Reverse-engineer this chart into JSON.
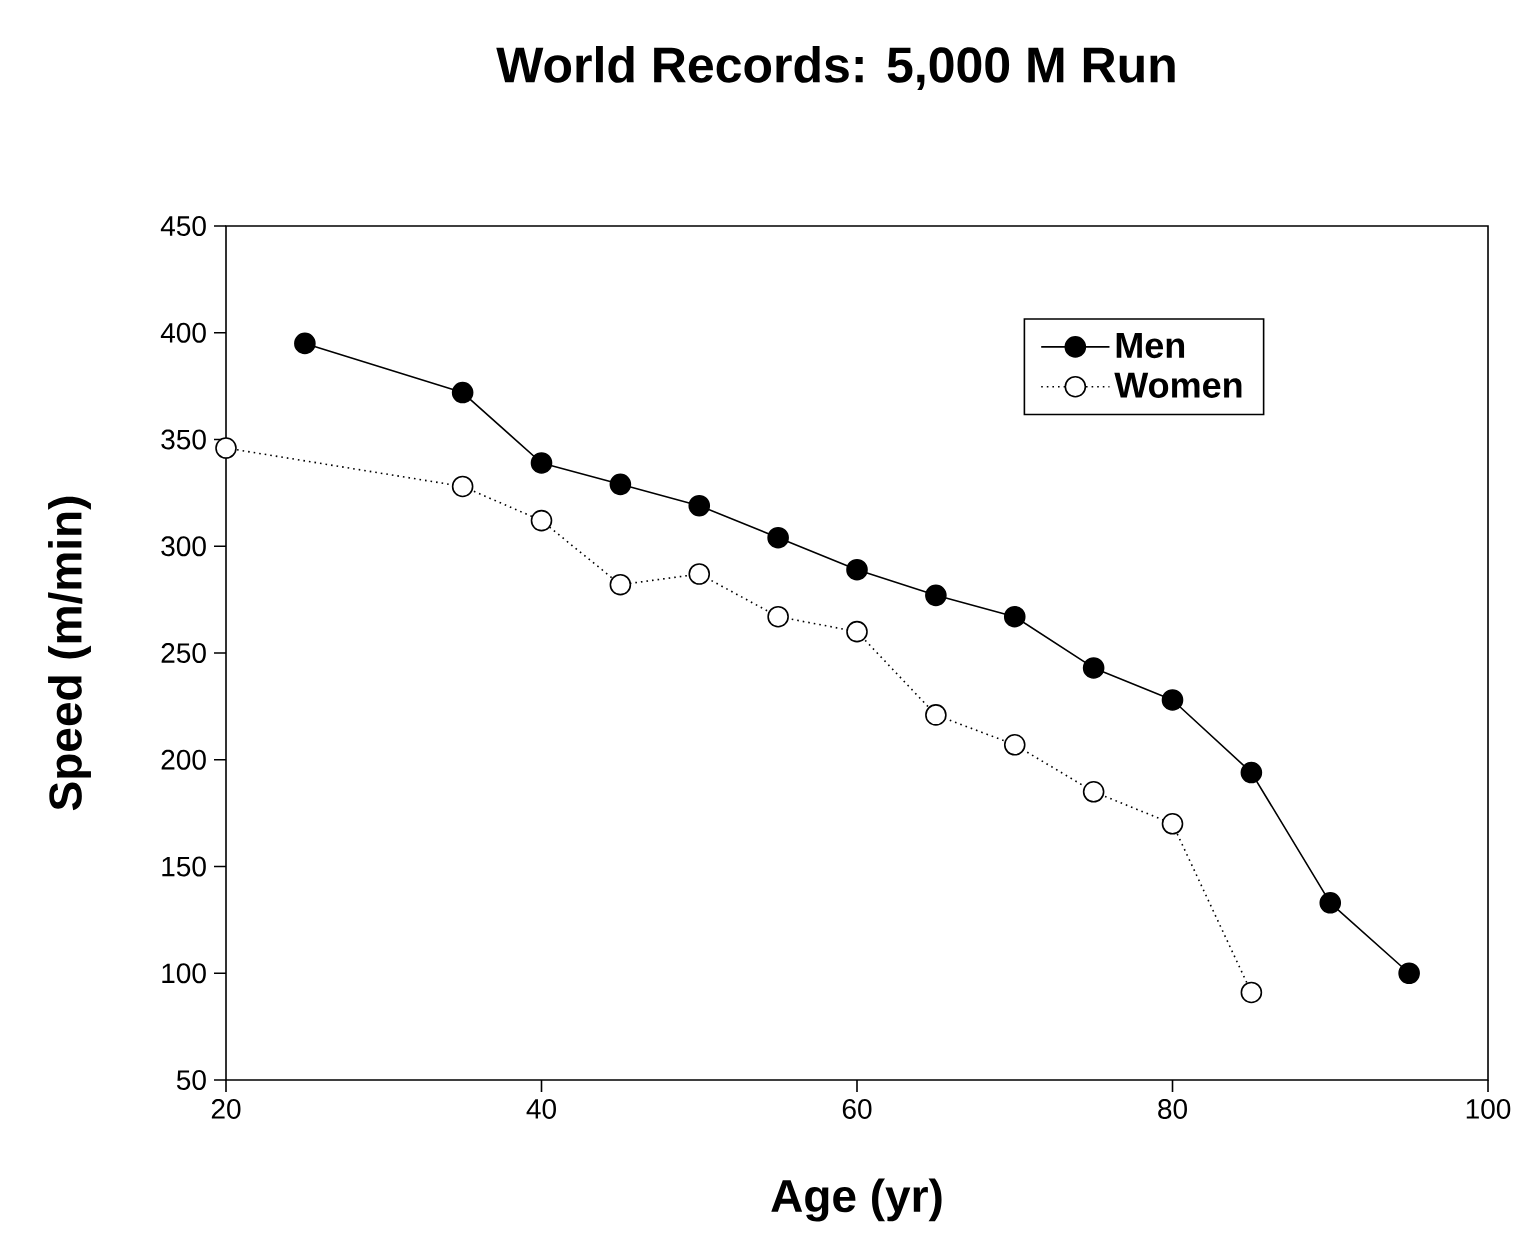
{
  "chart_data": {
    "type": "line",
    "title": "World Records: 5,000 M Run",
    "xlabel": "Age (yr)",
    "ylabel": "Speed (m/min)",
    "xlim": [
      20,
      100
    ],
    "xticks": [
      20,
      40,
      60,
      80,
      100
    ],
    "ylim": [
      50,
      450
    ],
    "yticks": [
      50,
      100,
      150,
      200,
      250,
      300,
      350,
      400,
      450
    ],
    "grid": false,
    "legend": "top right",
    "marker": "circle",
    "series": [
      {
        "name": "Men",
        "color": "#000000",
        "line_style": "solid",
        "x": [
          25,
          35,
          40,
          45,
          50,
          55,
          60,
          65,
          70,
          75,
          80,
          85,
          90,
          95
        ],
        "values": [
          395,
          372,
          339,
          329,
          319,
          304,
          289,
          277,
          267,
          243,
          228,
          194,
          133,
          100
        ]
      },
      {
        "name": "Women",
        "color": "#000000",
        "line_style": "dotted",
        "x": [
          20,
          35,
          40,
          45,
          50,
          55,
          60,
          65,
          70,
          75,
          80,
          85
        ],
        "values": [
          346,
          328,
          312,
          282,
          287,
          267,
          260,
          221,
          207,
          185,
          170,
          91
        ]
      }
    ]
  }
}
